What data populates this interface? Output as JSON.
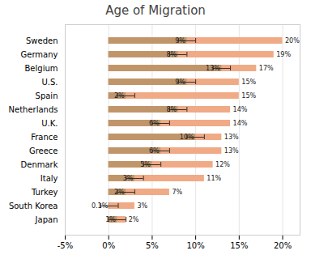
{
  "chart_data": {
    "type": "bar",
    "orientation": "horizontal",
    "title": "Age of Migration",
    "categories": [
      "Sweden",
      "Germany",
      "Belgium",
      "U.S.",
      "Spain",
      "Netherlands",
      "U.K.",
      "France",
      "Greece",
      "Denmark",
      "Italy",
      "Turkey",
      "South Korea",
      "Japan"
    ],
    "series": [
      {
        "color": "#c1956a",
        "values": [
          9,
          8,
          13,
          9,
          2,
          8,
          6,
          10,
          6,
          5,
          3,
          2,
          0.1,
          1
        ],
        "value_labels": [
          "9%",
          "8%",
          "13%",
          "9%",
          "2%",
          "8%",
          "6%",
          "10%",
          "6%",
          "5%",
          "3%",
          "2%",
          "0.1%",
          "1%"
        ],
        "errors": [
          1,
          1,
          1,
          1,
          1,
          1,
          1,
          1,
          1,
          1,
          1,
          1,
          1,
          1
        ]
      },
      {
        "color": "#f0aa85",
        "values": [
          20,
          19,
          17,
          15,
          15,
          14,
          14,
          13,
          13,
          12,
          11,
          7,
          3,
          2
        ],
        "value_labels": [
          "20%",
          "19%",
          "17%",
          "15%",
          "15%",
          "14%",
          "14%",
          "13%",
          "13%",
          "12%",
          "11%",
          "7%",
          "3%",
          "2%"
        ]
      }
    ],
    "xlim": [
      -5,
      22
    ],
    "xticks": [
      {
        "value": -5,
        "label": "-5%"
      },
      {
        "value": 0,
        "label": "0%"
      },
      {
        "value": 5,
        "label": "5%"
      },
      {
        "value": 10,
        "label": "10%"
      },
      {
        "value": 15,
        "label": "15%"
      },
      {
        "value": 20,
        "label": "20%"
      }
    ],
    "grid": true,
    "data_labels": true
  }
}
